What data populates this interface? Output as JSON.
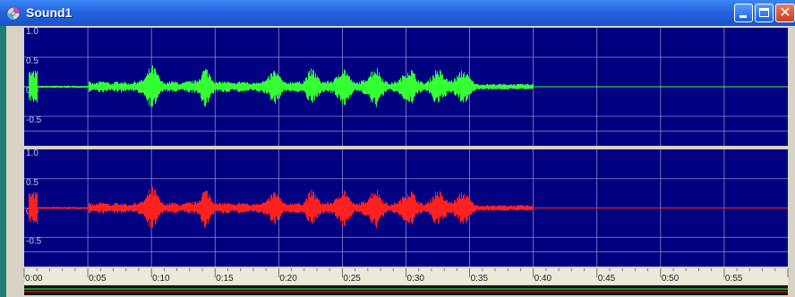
{
  "window": {
    "title": "Sound1",
    "icons": {
      "app": "cd-audio-icon",
      "minimize": "minimize-icon",
      "maximize": "maximize-icon",
      "close": "close-icon",
      "close_glyph": "✕"
    }
  },
  "colors": {
    "plot_bg": "#000080",
    "grid": "#8c8cc8",
    "channel_1_wave": "#33ff33",
    "channel_2_wave": "#ff2020",
    "titlebar": "#2563e0",
    "frame": "#d8d3c4"
  },
  "channels": [
    {
      "name": "channel-1",
      "amplitude_labels": [
        "1.0",
        "0.5",
        "0.0",
        "-0.5"
      ]
    },
    {
      "name": "channel-2",
      "amplitude_labels": [
        "1.0",
        "0.5",
        "0.0",
        "-0.5"
      ]
    }
  ],
  "time_axis": {
    "labels": [
      "0:00",
      "0:05",
      "0:10",
      "0:15",
      "0:20",
      "0:25",
      "0:30",
      "0:35",
      "0:40",
      "0:45",
      "0:50",
      "0:55"
    ],
    "signal_end_seconds": 40
  }
}
